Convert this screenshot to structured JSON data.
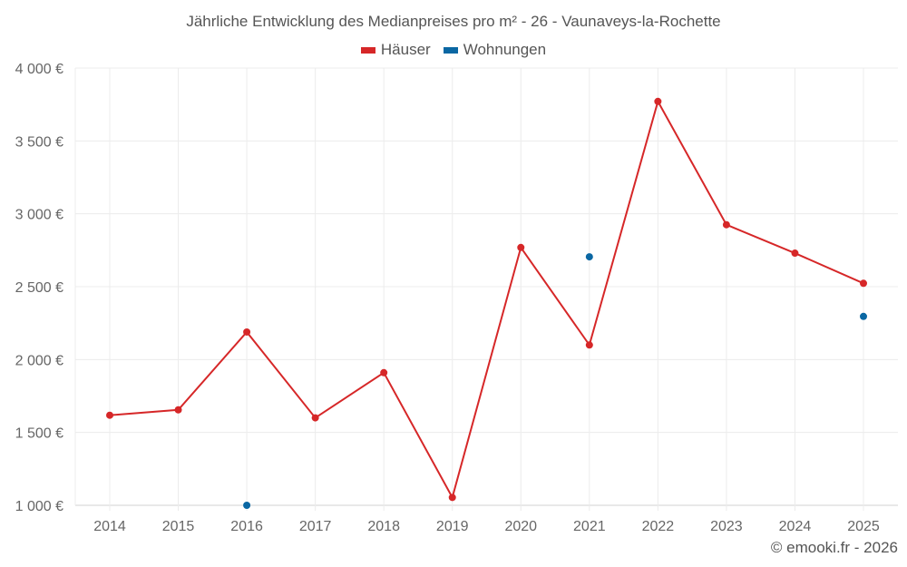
{
  "title": "Jährliche Entwicklung des Medianpreises pro m² - 26 - Vaunaveys-la-Rochette",
  "legend": [
    {
      "label": "Häuser",
      "color": "#d62728"
    },
    {
      "label": "Wohnungen",
      "color": "#0a67a3"
    }
  ],
  "credit": "© emooki.fr - 2026",
  "chart_data": {
    "type": "line",
    "title": "Jährliche Entwicklung des Medianpreises pro m² - 26 - Vaunaveys-la-Rochette",
    "xlabel": "",
    "ylabel": "",
    "categories": [
      "2014",
      "2015",
      "2016",
      "2017",
      "2018",
      "2019",
      "2020",
      "2021",
      "2022",
      "2023",
      "2024",
      "2025"
    ],
    "y_ticks": [
      "1 000 €",
      "1 500 €",
      "2 000 €",
      "2 500 €",
      "3 000 €",
      "3 500 €",
      "4 000 €"
    ],
    "ylim": [
      1000,
      4000
    ],
    "grid": true,
    "legend_position": "top",
    "series": [
      {
        "name": "Häuser",
        "color": "#d62728",
        "values": [
          1618,
          1655,
          2189,
          1600,
          1910,
          1054,
          2769,
          2100,
          3771,
          2925,
          2730,
          2523
        ]
      },
      {
        "name": "Wohnungen",
        "color": "#0a67a3",
        "values": [
          null,
          null,
          1000,
          null,
          null,
          null,
          null,
          2705,
          null,
          null,
          null,
          2296
        ]
      }
    ]
  }
}
